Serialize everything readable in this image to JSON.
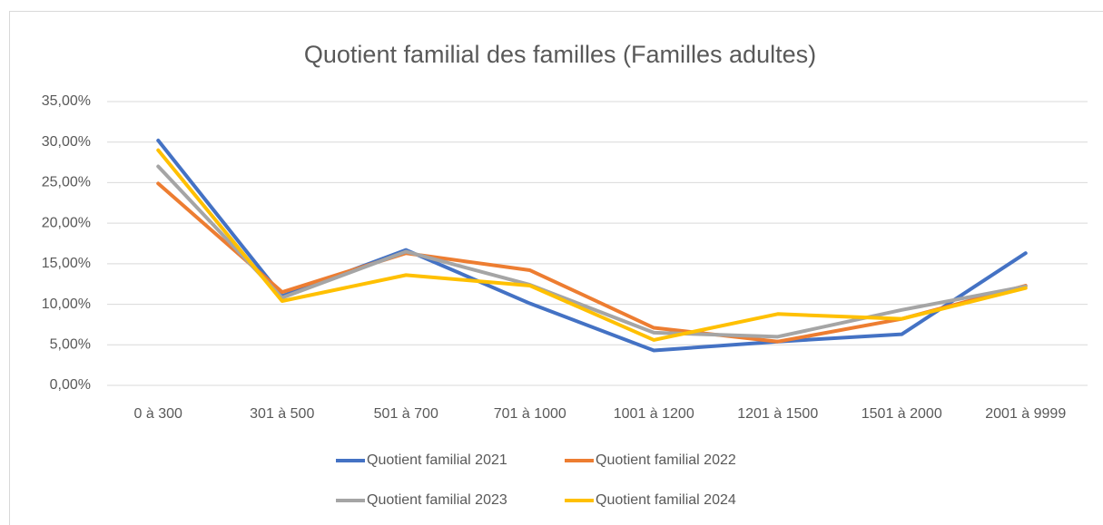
{
  "chart_data": {
    "type": "line",
    "title": "Quotient familial des familles (Familles adultes)",
    "categories": [
      "0 à 300",
      "301 à 500",
      "501 à 700",
      "701 à 1000",
      "1001 à 1200",
      "1201 à 1500",
      "1501 à 2000",
      "2001 à 9999"
    ],
    "series": [
      {
        "name": "Quotient familial 2021",
        "color": "#4472c4",
        "values": [
          30.2,
          11.0,
          16.7,
          10.1,
          4.3,
          5.4,
          6.3,
          16.3
        ]
      },
      {
        "name": "Quotient familial 2022",
        "color": "#ed7d31",
        "values": [
          24.9,
          11.5,
          16.3,
          14.2,
          7.1,
          5.4,
          8.2,
          12.3
        ]
      },
      {
        "name": "Quotient familial 2023",
        "color": "#a5a5a5",
        "values": [
          27.0,
          10.8,
          16.5,
          12.4,
          6.5,
          6.0,
          9.3,
          12.2
        ]
      },
      {
        "name": "Quotient familial 2024",
        "color": "#ffc000",
        "values": [
          29.0,
          10.4,
          13.6,
          12.3,
          5.6,
          8.8,
          8.2,
          12.0
        ]
      }
    ],
    "ylim": [
      0,
      35
    ],
    "yticks": [
      {
        "value": 0,
        "label": "0,00%"
      },
      {
        "value": 5,
        "label": "5,00%"
      },
      {
        "value": 10,
        "label": "10,00%"
      },
      {
        "value": 15,
        "label": "15,00%"
      },
      {
        "value": 20,
        "label": "20,00%"
      },
      {
        "value": 25,
        "label": "25,00%"
      },
      {
        "value": 30,
        "label": "30,00%"
      },
      {
        "value": 35,
        "label": "35,00%"
      }
    ],
    "grid": true,
    "legend": "bottom"
  }
}
